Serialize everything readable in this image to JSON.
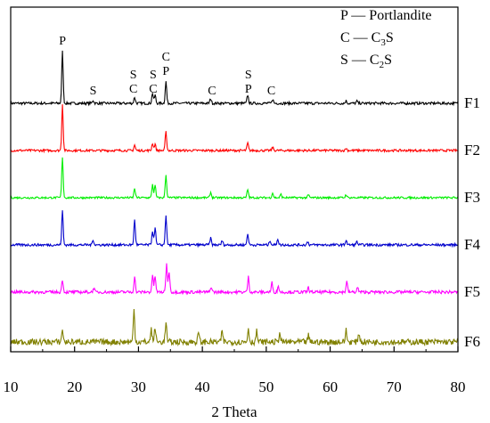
{
  "chart_data": {
    "type": "line",
    "xlabel": "2 Theta",
    "ylabel": "",
    "xlim": [
      10,
      80
    ],
    "x_ticks": [
      "10",
      "20",
      "30",
      "40",
      "50",
      "60",
      "70",
      "80"
    ],
    "legend": [
      {
        "symbol": "P",
        "dash": "—",
        "name": "Portlandite"
      },
      {
        "symbol": "C",
        "dash": "—",
        "name": "C",
        "sub": "3",
        "tail": "S"
      },
      {
        "symbol": "S",
        "dash": "—",
        "name": "C",
        "sub": "2",
        "tail": "S"
      }
    ],
    "series": [
      {
        "name": "F1",
        "color": "#000000",
        "noise": 0.025,
        "peaks": [
          [
            18.1,
            1.0
          ],
          [
            22.9,
            0.06
          ],
          [
            29.4,
            0.12
          ],
          [
            32.2,
            0.2
          ],
          [
            32.6,
            0.16
          ],
          [
            34.3,
            0.42
          ],
          [
            41.3,
            0.09
          ],
          [
            47.1,
            0.16
          ],
          [
            51.0,
            0.08
          ],
          [
            62.5,
            0.05
          ],
          [
            64.2,
            0.04
          ]
        ]
      },
      {
        "name": "F2",
        "color": "#ff0000",
        "noise": 0.025,
        "peaks": [
          [
            18.1,
            1.0
          ],
          [
            29.4,
            0.12
          ],
          [
            32.2,
            0.16
          ],
          [
            32.6,
            0.14
          ],
          [
            34.3,
            0.4
          ],
          [
            47.1,
            0.16
          ],
          [
            51.0,
            0.07
          ],
          [
            62.5,
            0.05
          ]
        ]
      },
      {
        "name": "F3",
        "color": "#00ee00",
        "noise": 0.025,
        "peaks": [
          [
            18.1,
            1.0
          ],
          [
            29.4,
            0.23
          ],
          [
            32.2,
            0.33
          ],
          [
            32.6,
            0.3
          ],
          [
            34.3,
            0.55
          ],
          [
            41.3,
            0.13
          ],
          [
            47.1,
            0.2
          ],
          [
            51.0,
            0.12
          ],
          [
            52.3,
            0.08
          ],
          [
            56.6,
            0.07
          ],
          [
            62.5,
            0.08
          ]
        ]
      },
      {
        "name": "F4",
        "color": "#0000cc",
        "noise": 0.03,
        "peaks": [
          [
            18.1,
            0.82
          ],
          [
            22.9,
            0.13
          ],
          [
            29.4,
            0.6
          ],
          [
            32.2,
            0.34
          ],
          [
            32.6,
            0.42
          ],
          [
            34.3,
            0.7
          ],
          [
            41.3,
            0.16
          ],
          [
            43.1,
            0.1
          ],
          [
            47.1,
            0.27
          ],
          [
            50.6,
            0.11
          ],
          [
            51.8,
            0.15
          ],
          [
            56.5,
            0.08
          ],
          [
            62.5,
            0.12
          ],
          [
            64.2,
            0.08
          ]
        ]
      },
      {
        "name": "F5",
        "color": "#ff00ff",
        "noise": 0.045,
        "peaks": [
          [
            18.1,
            0.38
          ],
          [
            23.0,
            0.12
          ],
          [
            29.4,
            0.45
          ],
          [
            32.2,
            0.5
          ],
          [
            32.6,
            0.48
          ],
          [
            34.4,
            0.85
          ],
          [
            34.8,
            0.6
          ],
          [
            41.4,
            0.16
          ],
          [
            47.2,
            0.45
          ],
          [
            50.9,
            0.28
          ],
          [
            51.9,
            0.18
          ],
          [
            56.6,
            0.14
          ],
          [
            62.6,
            0.32
          ],
          [
            64.3,
            0.14
          ]
        ]
      },
      {
        "name": "F6",
        "color": "#808000",
        "noise": 0.07,
        "peaks": [
          [
            18.1,
            0.3
          ],
          [
            29.3,
            0.75
          ],
          [
            32.0,
            0.3
          ],
          [
            32.6,
            0.35
          ],
          [
            34.3,
            0.45
          ],
          [
            39.4,
            0.22
          ],
          [
            43.1,
            0.25
          ],
          [
            47.2,
            0.32
          ],
          [
            48.5,
            0.25
          ],
          [
            52.1,
            0.22
          ],
          [
            56.6,
            0.15
          ],
          [
            62.5,
            0.28
          ],
          [
            64.5,
            0.22
          ]
        ]
      }
    ],
    "peak_labels": [
      {
        "x": 18.1,
        "lines": [
          "P"
        ]
      },
      {
        "x": 22.9,
        "lines": [
          "S"
        ]
      },
      {
        "x": 29.2,
        "lines": [
          "S",
          "C"
        ]
      },
      {
        "x": 32.3,
        "lines": [
          "S",
          "C"
        ]
      },
      {
        "x": 34.3,
        "lines": [
          "C",
          "P"
        ]
      },
      {
        "x": 41.5,
        "lines": [
          "C"
        ]
      },
      {
        "x": 47.2,
        "lines": [
          "S",
          "P"
        ]
      },
      {
        "x": 50.8,
        "lines": [
          "C"
        ]
      }
    ]
  }
}
